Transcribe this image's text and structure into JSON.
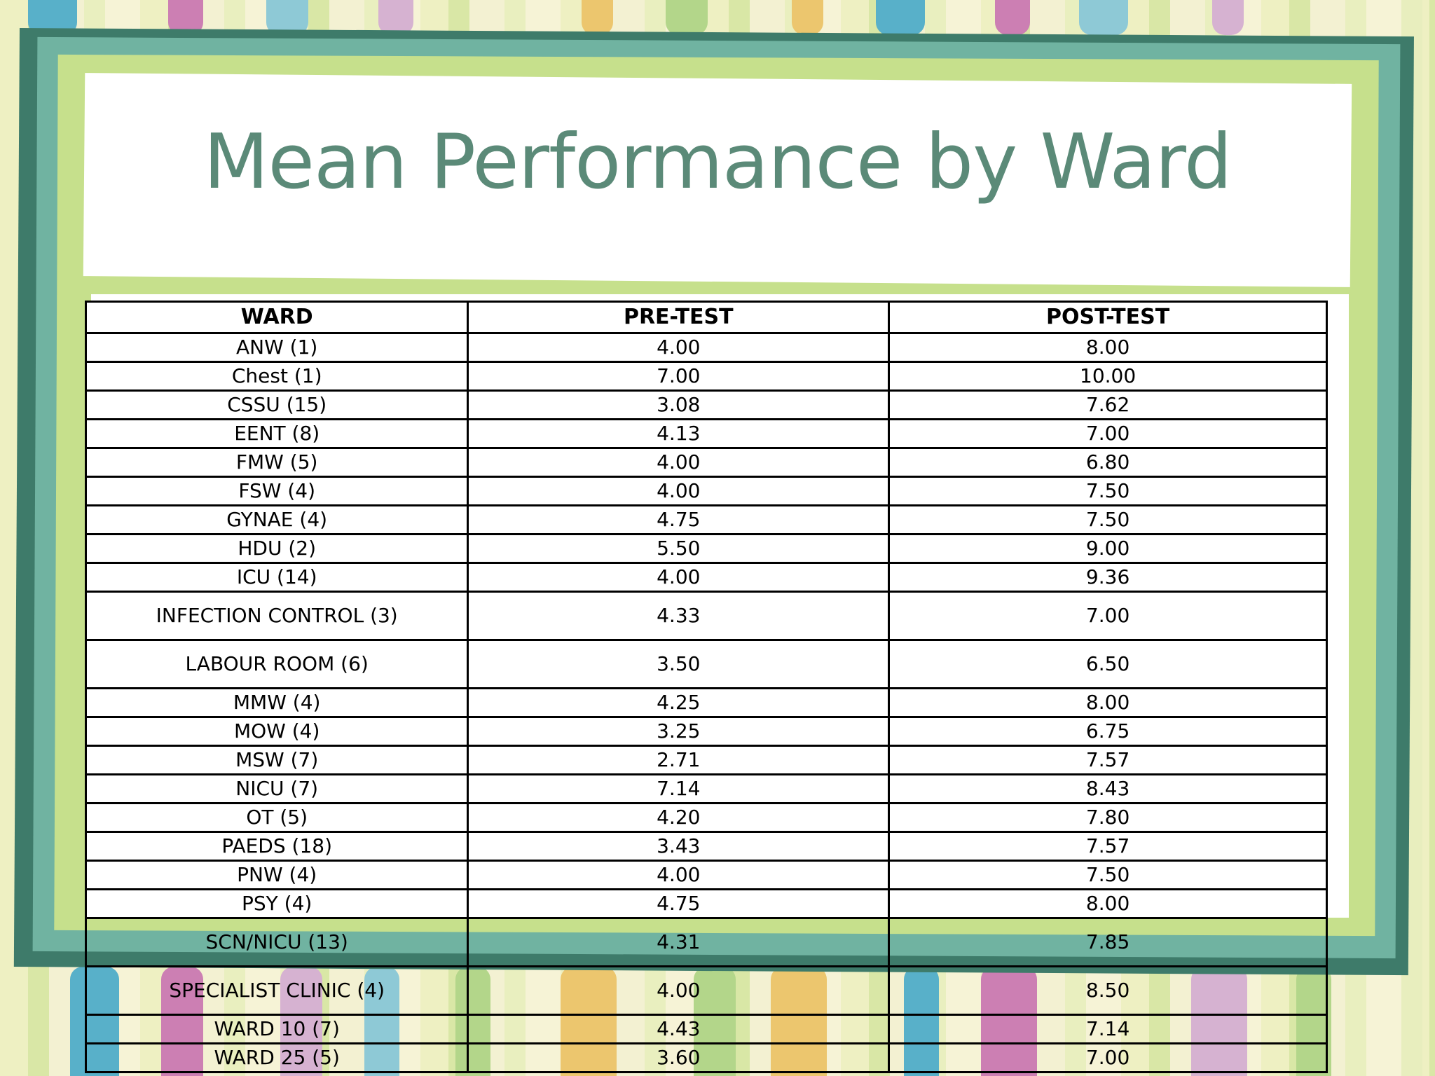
{
  "slide": {
    "title": "Mean Performance by Ward"
  },
  "table": {
    "headers": [
      "WARD",
      "PRE-TEST",
      "POST-TEST"
    ],
    "rows": [
      {
        "ward": "ANW (1)",
        "pre": "4.00",
        "post": "8.00"
      },
      {
        "ward": "Chest (1)",
        "pre": "7.00",
        "post": "10.00"
      },
      {
        "ward": "CSSU (15)",
        "pre": "3.08",
        "post": "7.62"
      },
      {
        "ward": "EENT (8)",
        "pre": "4.13",
        "post": "7.00"
      },
      {
        "ward": "FMW (5)",
        "pre": "4.00",
        "post": "6.80"
      },
      {
        "ward": "FSW (4)",
        "pre": "4.00",
        "post": "7.50"
      },
      {
        "ward": "GYNAE (4)",
        "pre": "4.75",
        "post": "7.50"
      },
      {
        "ward": "HDU (2)",
        "pre": "5.50",
        "post": "9.00"
      },
      {
        "ward": "ICU (14)",
        "pre": "4.00",
        "post": "9.36"
      },
      {
        "ward": "INFECTION CONTROL (3)",
        "pre": "4.33",
        "post": "7.00"
      },
      {
        "ward": "LABOUR ROOM (6)",
        "pre": "3.50",
        "post": "6.50"
      },
      {
        "ward": "MMW (4)",
        "pre": "4.25",
        "post": "8.00"
      },
      {
        "ward": "MOW (4)",
        "pre": "3.25",
        "post": "6.75"
      },
      {
        "ward": "MSW (7)",
        "pre": "2.71",
        "post": "7.57"
      },
      {
        "ward": "NICU (7)",
        "pre": "7.14",
        "post": "8.43"
      },
      {
        "ward": "OT (5)",
        "pre": "4.20",
        "post": "7.80"
      },
      {
        "ward": "PAEDS (18)",
        "pre": "3.43",
        "post": "7.57"
      },
      {
        "ward": "PNW (4)",
        "pre": "4.00",
        "post": "7.50"
      },
      {
        "ward": "PSY (4)",
        "pre": "4.75",
        "post": "8.00"
      },
      {
        "ward": "SCN/NICU (13)",
        "pre": "4.31",
        "post": "7.85"
      },
      {
        "ward": "SPECIALIST CLINIC (4)",
        "pre": "4.00",
        "post": "8.50"
      },
      {
        "ward": "WARD 10 (7)",
        "pre": "4.43",
        "post": "7.14"
      },
      {
        "ward": "WARD 25 (5)",
        "pre": "3.60",
        "post": "7.00"
      }
    ]
  },
  "colors": {
    "title": "#5b8a78",
    "frame_dark": "#3e7b6a",
    "frame_teal": "#70b3a1",
    "frame_green": "#c6e08c"
  }
}
